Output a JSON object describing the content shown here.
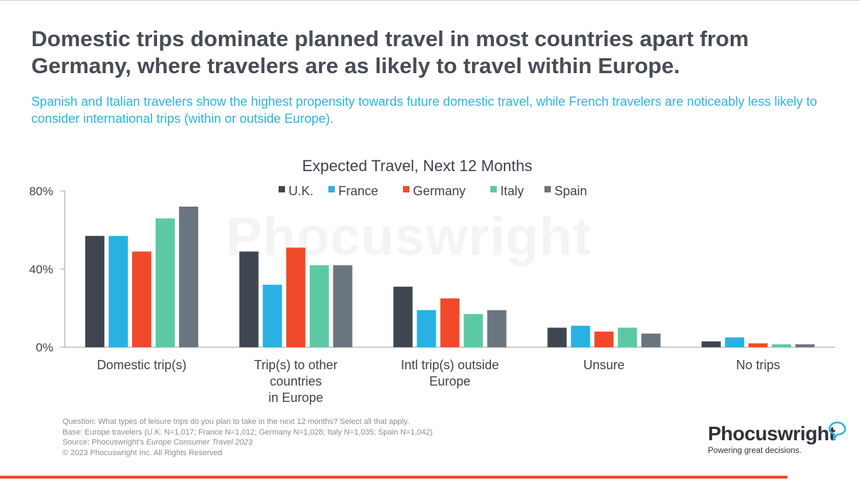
{
  "headline": "Domestic trips dominate planned travel in most countries apart from Germany, where travelers are as likely to travel within Europe.",
  "subhead": "Spanish and Italian travelers show the highest propensity towards future domestic travel, while French travelers are noticeably less likely to consider international trips (within or outside Europe).",
  "watermark": "Phocuswright",
  "chart_data": {
    "type": "bar",
    "title": "Expected Travel, Next 12 Months",
    "categories": [
      [
        "Domestic trip(s)"
      ],
      [
        "Trip(s) to other",
        "countries",
        "in Europe"
      ],
      [
        "Intl trip(s) outside",
        "Europe"
      ],
      [
        "Unsure"
      ],
      [
        "No trips"
      ]
    ],
    "series": [
      {
        "name": "U.K.",
        "color": "#3f464f",
        "values": [
          57,
          49,
          31,
          10,
          3
        ]
      },
      {
        "name": "France",
        "color": "#29b1e3",
        "values": [
          57,
          32,
          19,
          11,
          5
        ]
      },
      {
        "name": "Germany",
        "color": "#f04a2a",
        "values": [
          49,
          51,
          25,
          8,
          2
        ]
      },
      {
        "name": "Italy",
        "color": "#5cc9a5",
        "values": [
          66,
          42,
          17,
          10,
          1.5
        ]
      },
      {
        "name": "Spain",
        "color": "#6b7580",
        "values": [
          72,
          42,
          19,
          7,
          1.5
        ]
      }
    ],
    "yticks": [
      "80%",
      "40%",
      "0%"
    ],
    "ylim": [
      0,
      80
    ],
    "legend_position": "top-center",
    "grid": false
  },
  "notes": {
    "question": "Question: What types of leisure trips do you plan to take in the next 12 months? Select all that apply.",
    "base": "Base: Europe travelers (U.K. N=1,017; France N=1,012; Germany N=1,028; Italy N=1,035; Spain N=1,042)",
    "source_prefix": "Source: Phocuswright's ",
    "source_title": "Europe Consumer Travel 2023",
    "copyright": "© 2023 Phocuswright Inc. All Rights Reserved"
  },
  "brand": {
    "name": "Phocuswright",
    "tagline": "Powering great decisions.",
    "icon": "speech-bubble-icon",
    "accent": "#f04a2a"
  }
}
